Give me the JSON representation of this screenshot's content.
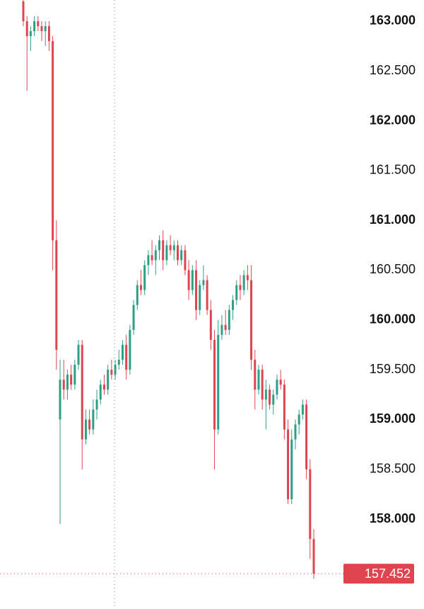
{
  "chart_data": {
    "type": "candlestick",
    "up_color": "#2f9e86",
    "down_color": "#e0454f",
    "ylim": [
      157.097,
      163.213
    ],
    "yticks": [
      {
        "value": 163,
        "label": "163.000"
      },
      {
        "value": 162.5,
        "label": "162.500"
      },
      {
        "value": 162,
        "label": "162.000"
      },
      {
        "value": 161.5,
        "label": "161.500"
      },
      {
        "value": 161,
        "label": "161.000"
      },
      {
        "value": 160.5,
        "label": "160.500"
      },
      {
        "value": 160,
        "label": "160.000"
      },
      {
        "value": 159.5,
        "label": "159.500"
      },
      {
        "value": 159,
        "label": "159.000"
      },
      {
        "value": 158.5,
        "label": "158.500"
      },
      {
        "value": 158,
        "label": "158.000"
      }
    ],
    "last_price": 157.452,
    "open": [
      163.2,
      163.0,
      162.85,
      162.9,
      163.0,
      162.95,
      162.9,
      162.95,
      162.8,
      160.8,
      159.0,
      159.4,
      159.3,
      159.45,
      159.35,
      159.55,
      159.75,
      158.8,
      159.0,
      158.9,
      159.1,
      159.2,
      159.35,
      159.3,
      159.5,
      159.45,
      159.55,
      159.6,
      159.75,
      159.5,
      159.9,
      160.15,
      160.35,
      160.3,
      160.55,
      160.65,
      160.6,
      160.7,
      160.8,
      160.6,
      160.75,
      160.7,
      160.75,
      160.6,
      160.7,
      160.5,
      160.3,
      160.5,
      160.1,
      160.35,
      160.4,
      160.1,
      159.8,
      158.9,
      159.85,
      159.95,
      159.9,
      160.1,
      160.2,
      160.35,
      160.3,
      160.45,
      160.4,
      159.6,
      159.3,
      159.5,
      159.2,
      159.3,
      159.15,
      159.25,
      159.4,
      159.35,
      158.9,
      158.2,
      158.8,
      158.95,
      159.05,
      159.15,
      158.5,
      157.8
    ],
    "high": [
      163.22,
      163.05,
      162.95,
      163.05,
      163.05,
      163.0,
      163.0,
      163.0,
      162.85,
      161.0,
      159.6,
      159.6,
      159.5,
      159.55,
      159.6,
      159.8,
      159.8,
      159.1,
      159.1,
      159.2,
      159.3,
      159.4,
      159.45,
      159.55,
      159.6,
      159.6,
      159.7,
      159.8,
      159.85,
      159.95,
      160.2,
      160.4,
      160.5,
      160.6,
      160.7,
      160.8,
      160.75,
      160.85,
      160.9,
      160.8,
      160.85,
      160.8,
      160.8,
      160.75,
      160.75,
      160.6,
      160.55,
      160.6,
      160.4,
      160.55,
      160.45,
      160.2,
      159.9,
      160.0,
      160.05,
      160.1,
      160.15,
      160.25,
      160.4,
      160.45,
      160.5,
      160.55,
      160.55,
      159.7,
      159.55,
      159.55,
      159.4,
      159.35,
      159.3,
      159.45,
      159.5,
      159.4,
      159.0,
      158.9,
      159.0,
      159.1,
      159.2,
      159.2,
      158.6,
      157.9
    ],
    "low": [
      162.95,
      162.3,
      162.7,
      162.85,
      162.9,
      162.8,
      162.75,
      162.7,
      160.5,
      159.5,
      157.95,
      159.2,
      159.2,
      159.3,
      159.3,
      159.5,
      158.5,
      158.75,
      158.85,
      158.85,
      159.0,
      159.15,
      159.25,
      159.25,
      159.4,
      159.4,
      159.5,
      159.55,
      159.4,
      159.45,
      159.85,
      160.1,
      160.25,
      160.25,
      160.45,
      160.55,
      160.45,
      160.6,
      160.5,
      160.55,
      160.65,
      160.6,
      160.55,
      160.55,
      160.45,
      160.2,
      160.25,
      160.0,
      160.05,
      160.3,
      160.05,
      159.7,
      158.5,
      158.85,
      159.8,
      159.85,
      159.85,
      160.0,
      160.15,
      160.2,
      160.25,
      160.3,
      159.5,
      159.1,
      159.25,
      159.1,
      158.9,
      159.1,
      159.05,
      159.2,
      159.3,
      158.8,
      158.15,
      158.15,
      158.7,
      158.85,
      159.0,
      158.4,
      157.6,
      157.4
    ],
    "close": [
      163.0,
      162.85,
      162.9,
      163.0,
      162.95,
      162.9,
      162.95,
      162.8,
      160.8,
      159.7,
      159.4,
      159.3,
      159.45,
      159.35,
      159.55,
      159.75,
      158.8,
      159.0,
      158.9,
      159.1,
      159.2,
      159.35,
      159.3,
      159.5,
      159.45,
      159.55,
      159.6,
      159.75,
      159.5,
      159.9,
      160.15,
      160.35,
      160.3,
      160.55,
      160.65,
      160.6,
      160.7,
      160.8,
      160.6,
      160.75,
      160.7,
      160.75,
      160.6,
      160.7,
      160.5,
      160.3,
      160.5,
      160.1,
      160.35,
      160.4,
      160.1,
      159.8,
      158.9,
      159.85,
      159.95,
      159.9,
      160.1,
      160.2,
      160.35,
      160.3,
      160.45,
      160.4,
      159.6,
      159.3,
      159.5,
      159.2,
      159.3,
      159.15,
      159.25,
      159.4,
      159.35,
      158.9,
      158.2,
      158.8,
      158.95,
      159.05,
      159.15,
      158.5,
      157.8,
      157.452
    ]
  }
}
